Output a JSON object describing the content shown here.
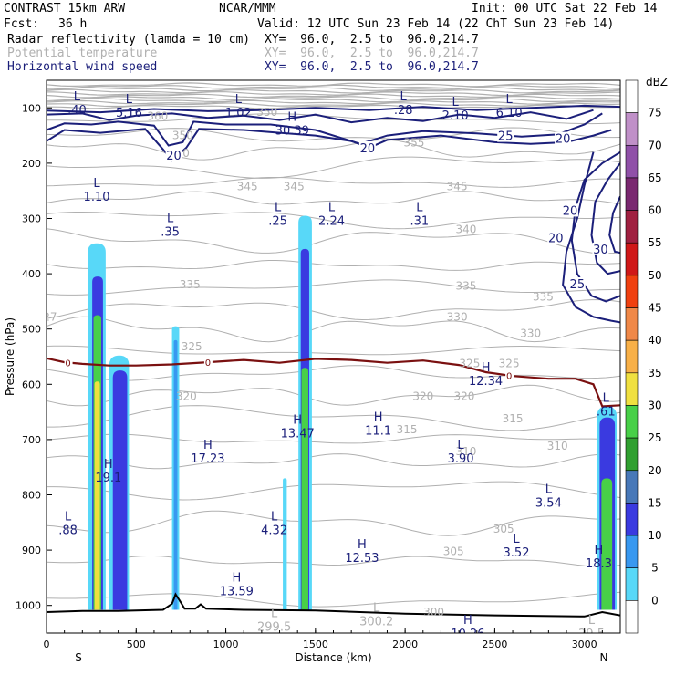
{
  "header": {
    "title": "CONTRAST 15km ARW",
    "org": "NCAR/MMM",
    "init": "Init: 00 UTC Sat 22 Feb 14",
    "fcst_label": "Fcst:",
    "fcst_value": "36 h",
    "valid": "Valid: 12 UTC Sun 23 Feb 14 (22 ChT Sun 23 Feb 14)",
    "fields": [
      {
        "name": "Radar reflectivity (lamda = 10 cm)",
        "xy": "XY=  96.0,  2.5 to  96.0,214.7"
      },
      {
        "name": "Potential temperature",
        "xy": "XY=  96.0,  2.5 to  96.0,214.7"
      },
      {
        "name": "Horizontal wind speed",
        "xy": "XY=  96.0,  2.5 to  96.0,214.7"
      }
    ]
  },
  "colors": {
    "theta": "#b0b0b0",
    "wind": "#1b1f7a",
    "freezing": "#7a1010",
    "terrain": "#000000"
  },
  "chart_data": {
    "type": "cross-section",
    "xlabel": "Distance (km)",
    "ylabel": "Pressure (hPa)",
    "xlim": [
      0,
      3200
    ],
    "ylim": [
      1050,
      50
    ],
    "x_ticks": [
      0,
      500,
      1000,
      1500,
      2000,
      2500,
      3000
    ],
    "y_ticks": [
      100,
      200,
      300,
      400,
      500,
      600,
      700,
      800,
      900,
      1000
    ],
    "end_labels": {
      "left": "S",
      "right": "N"
    },
    "colorbar": {
      "unit": "dBZ",
      "levels": [
        {
          "v": "75",
          "color": "#c090c8"
        },
        {
          "v": "70",
          "color": "#9050a8"
        },
        {
          "v": "65",
          "color": "#7a2870"
        },
        {
          "v": "60",
          "color": "#a02040"
        },
        {
          "v": "55",
          "color": "#d01818"
        },
        {
          "v": "50",
          "color": "#f04010"
        },
        {
          "v": "45",
          "color": "#f08848"
        },
        {
          "v": "40",
          "color": "#f8b048"
        },
        {
          "v": "35",
          "color": "#f0e040"
        },
        {
          "v": "30",
          "color": "#48d048"
        },
        {
          "v": "25",
          "color": "#30a030"
        },
        {
          "v": "20",
          "color": "#4878b8"
        },
        {
          "v": "15",
          "color": "#3a3ae0"
        },
        {
          "v": "10",
          "color": "#3898f0"
        },
        {
          "v": "5",
          "color": "#58d8f8"
        },
        {
          "v": "0",
          "color": "#ffffff"
        }
      ]
    },
    "theta_labels": [
      {
        "t": "360",
        "x": 620,
        "p": 115
      },
      {
        "t": "350",
        "x": 760,
        "p": 150
      },
      {
        "t": "350",
        "x": 1230,
        "p": 108
      },
      {
        "t": "355",
        "x": 2050,
        "p": 163
      },
      {
        "t": "350",
        "x": 740,
        "p": 182
      },
      {
        "t": "345",
        "x": 1120,
        "p": 242
      },
      {
        "t": "345",
        "x": 2290,
        "p": 242
      },
      {
        "t": "345",
        "x": 1380,
        "p": 242
      },
      {
        "t": "340",
        "x": 2340,
        "p": 320
      },
      {
        "t": "335",
        "x": 800,
        "p": 420
      },
      {
        "t": "335",
        "x": 2340,
        "p": 422
      },
      {
        "t": "335",
        "x": 2770,
        "p": 442
      },
      {
        "t": "330",
        "x": 2290,
        "p": 478
      },
      {
        "t": "330",
        "x": 2700,
        "p": 508
      },
      {
        "t": "325",
        "x": 810,
        "p": 532
      },
      {
        "t": "325",
        "x": 2360,
        "p": 562
      },
      {
        "t": "325",
        "x": 2580,
        "p": 562
      },
      {
        "t": "320",
        "x": 780,
        "p": 622
      },
      {
        "t": "320",
        "x": 2100,
        "p": 622
      },
      {
        "t": "320",
        "x": 2330,
        "p": 622
      },
      {
        "t": "315",
        "x": 2010,
        "p": 682
      },
      {
        "t": "315",
        "x": 2600,
        "p": 662
      },
      {
        "t": "310",
        "x": 2340,
        "p": 722
      },
      {
        "t": "310",
        "x": 2850,
        "p": 712
      },
      {
        "t": "305",
        "x": 2550,
        "p": 862
      },
      {
        "t": "305",
        "x": 2270,
        "p": 902
      },
      {
        "t": "300",
        "x": 2160,
        "p": 1012
      },
      {
        "t": "27",
        "x": 20,
        "p": 478
      }
    ],
    "wind_labels": [
      {
        "t": "20",
        "x": 710,
        "p": 185
      },
      {
        "t": "20",
        "x": 1790,
        "p": 172
      },
      {
        "t": "25",
        "x": 2560,
        "p": 150
      },
      {
        "t": "20",
        "x": 2880,
        "p": 155
      },
      {
        "t": "20",
        "x": 2920,
        "p": 285
      },
      {
        "t": "20",
        "x": 2840,
        "p": 335
      },
      {
        "t": "30",
        "x": 3090,
        "p": 355
      },
      {
        "t": "25",
        "x": 2960,
        "p": 418
      }
    ],
    "freezing_level": {
      "label": "0",
      "points": [
        [
          0,
          553
        ],
        [
          100,
          560
        ],
        [
          200,
          563
        ],
        [
          350,
          566
        ],
        [
          500,
          566
        ],
        [
          700,
          564
        ],
        [
          900,
          560
        ],
        [
          1100,
          556
        ],
        [
          1300,
          561
        ],
        [
          1500,
          554
        ],
        [
          1700,
          556
        ],
        [
          1900,
          561
        ],
        [
          2100,
          557
        ],
        [
          2300,
          565
        ],
        [
          2450,
          578
        ],
        [
          2600,
          585
        ],
        [
          2800,
          590
        ],
        [
          2950,
          590
        ],
        [
          3050,
          600
        ],
        [
          3100,
          640
        ],
        [
          3200,
          638
        ]
      ],
      "label_at_x": [
        120,
        900,
        2580
      ]
    },
    "terrain": [
      [
        0,
        1012
      ],
      [
        200,
        1010
      ],
      [
        400,
        1010
      ],
      [
        650,
        1008
      ],
      [
        700,
        997
      ],
      [
        720,
        980
      ],
      [
        740,
        990
      ],
      [
        770,
        1006
      ],
      [
        830,
        1006
      ],
      [
        860,
        998
      ],
      [
        890,
        1006
      ],
      [
        1100,
        1008
      ],
      [
        1500,
        1009
      ],
      [
        2000,
        1015
      ],
      [
        2500,
        1018
      ],
      [
        3000,
        1020
      ],
      [
        3100,
        1012
      ],
      [
        3200,
        1018
      ]
    ],
    "reflectivity_columns": [
      {
        "name": "col-280",
        "x0": 230,
        "x1": 330,
        "top": 345,
        "layers": [
          {
            "c": "#58d8f8",
            "top": 345,
            "x0": 230,
            "x1": 330
          },
          {
            "c": "#3a3ae0",
            "top": 405,
            "x0": 255,
            "x1": 315
          },
          {
            "c": "#48d048",
            "top": 475,
            "x0": 262,
            "x1": 305
          },
          {
            "c": "#f0e040",
            "top": 595,
            "x0": 268,
            "x1": 298
          }
        ]
      },
      {
        "name": "col-410",
        "x0": 350,
        "x1": 460,
        "top": 550,
        "layers": [
          {
            "c": "#58d8f8",
            "top": 548,
            "x0": 350,
            "x1": 460
          },
          {
            "c": "#3a3ae0",
            "top": 575,
            "x0": 370,
            "x1": 450
          }
        ]
      },
      {
        "name": "col-720",
        "x0": 700,
        "x1": 740,
        "top": 495,
        "layers": [
          {
            "c": "#58d8f8",
            "top": 495,
            "x0": 700,
            "x1": 740
          },
          {
            "c": "#3898f0",
            "top": 520,
            "x0": 710,
            "x1": 730
          }
        ]
      },
      {
        "name": "col-1440",
        "x0": 1405,
        "x1": 1480,
        "top": 295,
        "layers": [
          {
            "c": "#58d8f8",
            "top": 295,
            "x0": 1405,
            "x1": 1480
          },
          {
            "c": "#3a3ae0",
            "top": 355,
            "x0": 1418,
            "x1": 1465
          },
          {
            "c": "#48d048",
            "top": 570,
            "x0": 1422,
            "x1": 1460
          }
        ]
      },
      {
        "name": "col-1330",
        "x0": 1318,
        "x1": 1340,
        "top": 770,
        "layers": [
          {
            "c": "#58d8f8",
            "top": 770,
            "x0": 1318,
            "x1": 1340
          }
        ]
      },
      {
        "name": "col-3110",
        "x0": 3070,
        "x1": 3200,
        "top": 640,
        "layers": [
          {
            "c": "#58d8f8",
            "top": 640,
            "x0": 3070,
            "x1": 3180
          },
          {
            "c": "#3a3ae0",
            "top": 660,
            "x0": 3085,
            "x1": 3170
          },
          {
            "c": "#48d048",
            "top": 770,
            "x0": 3095,
            "x1": 3155
          }
        ]
      }
    ],
    "annotations": [
      {
        "letter": "L",
        "value": ".40",
        "x": 170,
        "p": 93,
        "color": "#1b1f7a"
      },
      {
        "letter": "L",
        "value": "5.16",
        "x": 460,
        "p": 98,
        "color": "#1b1f7a"
      },
      {
        "letter": "L",
        "value": "1.02",
        "x": 1070,
        "p": 98,
        "color": "#1b1f7a"
      },
      {
        "letter": "H",
        "value": "30.39",
        "x": 1370,
        "p": 130,
        "color": "#1b1f7a"
      },
      {
        "letter": "L",
        "value": ".28",
        "x": 1990,
        "p": 93,
        "color": "#1b1f7a"
      },
      {
        "letter": "L",
        "value": "2.10",
        "x": 2280,
        "p": 103,
        "color": "#1b1f7a"
      },
      {
        "letter": "L",
        "value": "6.10",
        "x": 2580,
        "p": 98,
        "color": "#1b1f7a"
      },
      {
        "letter": "L",
        "value": "1.10",
        "x": 280,
        "p": 250,
        "color": "#1b1f7a"
      },
      {
        "letter": "L",
        "value": ".35",
        "x": 690,
        "p": 313,
        "color": "#1b1f7a"
      },
      {
        "letter": "L",
        "value": ".25",
        "x": 1290,
        "p": 293,
        "color": "#1b1f7a"
      },
      {
        "letter": "L",
        "value": "2.24",
        "x": 1590,
        "p": 293,
        "color": "#1b1f7a"
      },
      {
        "letter": "L",
        "value": ".31",
        "x": 2080,
        "p": 293,
        "color": "#1b1f7a"
      },
      {
        "letter": "H",
        "value": "12.34",
        "x": 2450,
        "p": 583,
        "color": "#1b1f7a"
      },
      {
        "letter": "L",
        "value": ".61",
        "x": 3120,
        "p": 638,
        "color": "#1b1f7a"
      },
      {
        "letter": "H",
        "value": "13.47",
        "x": 1400,
        "p": 678,
        "color": "#1b1f7a"
      },
      {
        "letter": "H",
        "value": "11.1",
        "x": 1850,
        "p": 673,
        "color": "#1b1f7a"
      },
      {
        "letter": "H",
        "value": "17.23",
        "x": 900,
        "p": 723,
        "color": "#1b1f7a"
      },
      {
        "letter": "L",
        "value": "3.90",
        "x": 2310,
        "p": 723,
        "color": "#1b1f7a"
      },
      {
        "letter": "H",
        "value": "19.1",
        "x": 345,
        "p": 758,
        "color": "#1b1f7a"
      },
      {
        "letter": "L",
        "value": "3.54",
        "x": 2800,
        "p": 803,
        "color": "#1b1f7a"
      },
      {
        "letter": "L",
        "value": ".88",
        "x": 120,
        "p": 853,
        "color": "#1b1f7a"
      },
      {
        "letter": "L",
        "value": "4.32",
        "x": 1270,
        "p": 853,
        "color": "#1b1f7a"
      },
      {
        "letter": "H",
        "value": "12.53",
        "x": 1760,
        "p": 903,
        "color": "#1b1f7a"
      },
      {
        "letter": "L",
        "value": "3.52",
        "x": 2620,
        "p": 893,
        "color": "#1b1f7a"
      },
      {
        "letter": "H",
        "value": "18.3",
        "x": 3080,
        "p": 913,
        "color": "#1b1f7a"
      },
      {
        "letter": "H",
        "value": "13.59",
        "x": 1060,
        "p": 963,
        "color": "#1b1f7a"
      },
      {
        "letter": "L",
        "value": "299.5",
        "x": 1270,
        "p": 1028,
        "color": "#b0b0b0"
      },
      {
        "letter": "L",
        "value": "300.2",
        "x": 1840,
        "p": 1018,
        "color": "#b0b0b0"
      },
      {
        "letter": "H",
        "value": "10.26",
        "x": 2350,
        "p": 1040,
        "color": "#1b1f7a"
      },
      {
        "letter": "L",
        "value": "29.5",
        "x": 3040,
        "p": 1040,
        "color": "#b0b0b0"
      }
    ]
  }
}
